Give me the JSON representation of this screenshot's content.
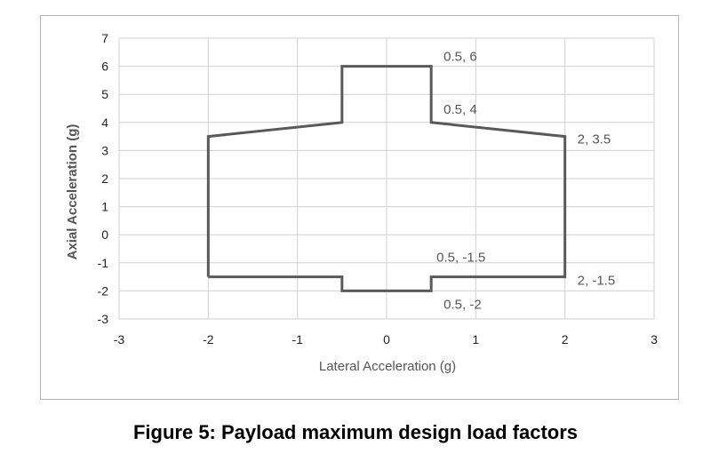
{
  "caption": "Figure 5: Payload maximum design load factors",
  "chart_data": {
    "type": "line",
    "xlabel": "Lateral Acceleration (g)",
    "ylabel": "Axial Acceleration (g)",
    "xlim": [
      -3,
      3
    ],
    "ylim": [
      -3,
      7
    ],
    "xticks": [
      "-3",
      "-2",
      "-1",
      "0",
      "1",
      "2",
      "3"
    ],
    "yticks": [
      "-3",
      "-2",
      "-1",
      "0",
      "1",
      "2",
      "3",
      "4",
      "5",
      "6",
      "7"
    ],
    "grid": true,
    "line_color": "#595959",
    "series": [
      {
        "x": [
          -2,
          -2,
          -0.5,
          -0.5,
          0.5,
          0.5,
          2,
          2,
          0.5,
          0.5,
          -0.5,
          -0.5,
          -2
        ],
        "y": [
          -1.5,
          3.5,
          4,
          6,
          6,
          4,
          3.5,
          -1.5,
          -1.5,
          -2,
          -2,
          -1.5,
          -1.5
        ]
      }
    ],
    "annotations": [
      {
        "text": "0.5, 6",
        "x": 0.5,
        "y": 6
      },
      {
        "text": "0.5, 4",
        "x": 0.5,
        "y": 4
      },
      {
        "text": "2, 3.5",
        "x": 2,
        "y": 3.5
      },
      {
        "text": "0.5, -1.5",
        "x": 0.5,
        "y": -1.5
      },
      {
        "text": "2, -1.5",
        "x": 2,
        "y": -1.5
      },
      {
        "text": "0.5, -2",
        "x": 0.5,
        "y": -2
      }
    ]
  }
}
